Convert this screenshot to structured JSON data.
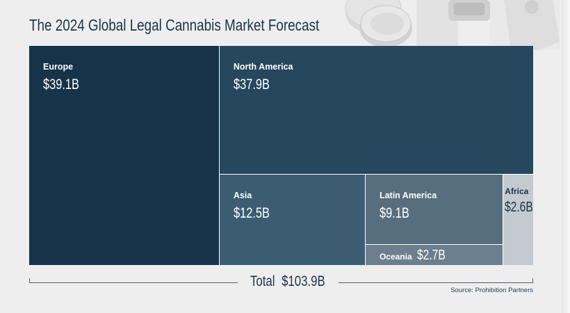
{
  "title": "The 2024 Global Legal Cannabis Market Forecast",
  "colors": {
    "background": "#eeeeee",
    "title": "#1b3347",
    "europe": "#163349",
    "north_america": "#26475d",
    "asia": "#3c5c72",
    "latin_america": "#566e7d",
    "oceania": "#6b7f8e",
    "africa": "#c3cad0"
  },
  "chart_data": {
    "type": "treemap",
    "title": "The 2024 Global Legal Cannabis Market Forecast",
    "unit": "USD billions",
    "series": [
      {
        "name": "Europe",
        "value": 39.1,
        "label": "$39.1B"
      },
      {
        "name": "North America",
        "value": 37.9,
        "label": "$37.9B"
      },
      {
        "name": "Asia",
        "value": 12.5,
        "label": "$12.5B"
      },
      {
        "name": "Latin America",
        "value": 9.1,
        "label": "$9.1B"
      },
      {
        "name": "Oceania",
        "value": 2.7,
        "label": "$2.7B"
      },
      {
        "name": "Africa",
        "value": 2.6,
        "label": "$2.6B"
      }
    ],
    "total": {
      "label": "Total",
      "value": 103.9,
      "value_label": "$103.9B"
    }
  },
  "source": "Source: Prohibition Partners"
}
